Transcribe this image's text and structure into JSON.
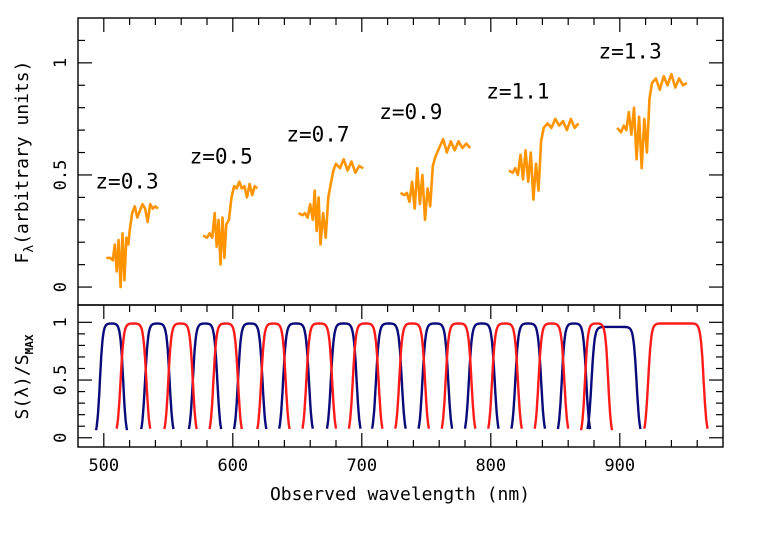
{
  "chart_data": [
    {
      "type": "line",
      "panel": "top",
      "ylabel_main": "F",
      "ylabel_sub": "λ",
      "ylabel_rest": "(arbitrary units)",
      "xlim": [
        480,
        980
      ],
      "ylim": [
        -0.08,
        1.2
      ],
      "yticks": [
        0,
        0.5,
        1
      ],
      "ytick_labels": [
        "0",
        "0.5",
        "1"
      ],
      "color": "#ff9400",
      "spectra": [
        {
          "label": "z=0.3",
          "label_pos": [
            518,
            0.44
          ],
          "x": [
            502,
            505,
            507,
            508.5,
            510,
            511.5,
            513,
            514.5,
            516,
            517.5,
            519,
            520,
            522,
            524,
            526,
            528,
            530,
            532,
            534,
            536,
            538,
            540,
            542
          ],
          "y": [
            0.13,
            0.13,
            0.12,
            0.19,
            0.07,
            0.21,
            0.0,
            0.24,
            0.03,
            0.22,
            0.19,
            0.25,
            0.33,
            0.36,
            0.31,
            0.34,
            0.37,
            0.35,
            0.29,
            0.37,
            0.35,
            0.36,
            0.35
          ]
        },
        {
          "label": "z=0.5",
          "label_pos": [
            591,
            0.55
          ],
          "x": [
            577,
            580,
            582,
            584,
            586,
            587.5,
            589,
            590.5,
            592,
            593.5,
            595,
            597,
            599,
            601,
            603,
            605,
            607,
            609,
            611,
            613,
            615,
            617,
            619
          ],
          "y": [
            0.23,
            0.22,
            0.24,
            0.22,
            0.33,
            0.18,
            0.3,
            0.1,
            0.31,
            0.13,
            0.28,
            0.3,
            0.4,
            0.45,
            0.44,
            0.47,
            0.44,
            0.45,
            0.4,
            0.46,
            0.41,
            0.45,
            0.44
          ]
        },
        {
          "label": "z=0.7",
          "label_pos": [
            666,
            0.65
          ],
          "x": [
            651,
            654,
            656,
            658,
            660,
            662,
            663.5,
            665,
            666.5,
            668,
            670,
            672,
            674,
            676,
            678,
            680,
            683,
            686,
            689,
            692,
            695,
            698,
            701
          ],
          "y": [
            0.33,
            0.32,
            0.33,
            0.31,
            0.37,
            0.3,
            0.43,
            0.25,
            0.4,
            0.19,
            0.33,
            0.22,
            0.4,
            0.46,
            0.52,
            0.55,
            0.53,
            0.57,
            0.52,
            0.56,
            0.51,
            0.54,
            0.53
          ]
        },
        {
          "label": "z=0.9",
          "label_pos": [
            738,
            0.75
          ],
          "x": [
            730,
            733,
            735,
            737,
            739,
            741,
            743,
            745,
            747,
            749,
            751,
            753,
            755,
            757,
            760,
            763,
            766,
            769,
            772,
            775,
            778,
            781,
            784
          ],
          "y": [
            0.42,
            0.41,
            0.42,
            0.38,
            0.47,
            0.35,
            0.53,
            0.37,
            0.5,
            0.3,
            0.44,
            0.36,
            0.54,
            0.58,
            0.62,
            0.66,
            0.6,
            0.65,
            0.61,
            0.65,
            0.62,
            0.64,
            0.62
          ]
        },
        {
          "label": "z=1.1",
          "label_pos": [
            821,
            0.84
          ],
          "x": [
            814,
            817,
            819,
            821,
            823,
            825,
            827,
            829,
            831,
            833,
            835,
            837,
            839,
            841,
            844,
            847,
            850,
            853,
            856,
            859,
            862,
            865,
            868
          ],
          "y": [
            0.52,
            0.51,
            0.53,
            0.5,
            0.59,
            0.48,
            0.61,
            0.47,
            0.6,
            0.39,
            0.55,
            0.43,
            0.65,
            0.71,
            0.73,
            0.71,
            0.75,
            0.72,
            0.74,
            0.7,
            0.75,
            0.71,
            0.73
          ]
        },
        {
          "label": "z=1.3",
          "label_pos": [
            908,
            1.02
          ],
          "x": [
            898,
            901,
            903,
            905,
            907,
            909,
            911,
            913,
            915,
            917,
            919,
            921,
            923,
            925,
            928,
            931,
            934,
            937,
            940,
            943,
            946,
            949,
            952
          ],
          "y": [
            0.71,
            0.69,
            0.72,
            0.7,
            0.78,
            0.68,
            0.8,
            0.57,
            0.76,
            0.53,
            0.75,
            0.6,
            0.84,
            0.91,
            0.93,
            0.88,
            0.94,
            0.9,
            0.95,
            0.89,
            0.93,
            0.9,
            0.91
          ]
        }
      ]
    },
    {
      "type": "line",
      "panel": "bottom",
      "xlabel": "Observed wavelength (nm)",
      "ylabel_main": "S(λ)/S",
      "ylabel_sub": "MAX",
      "xlim": [
        480,
        980
      ],
      "ylim": [
        -0.08,
        1.15
      ],
      "xticks": [
        500,
        600,
        700,
        800,
        900
      ],
      "xtick_labels": [
        "500",
        "600",
        "700",
        "800",
        "900"
      ],
      "yticks": [
        0,
        0.5,
        1
      ],
      "ytick_labels": [
        "0",
        "0.5",
        "1"
      ],
      "series": [
        {
          "color": "#0a0a7a",
          "filters": [
            {
              "start": 497,
              "end": 515,
              "peak": 0.99
            },
            {
              "start": 532,
              "end": 551,
              "peak": 0.99
            },
            {
              "start": 569,
              "end": 588,
              "peak": 0.99
            },
            {
              "start": 604,
              "end": 623,
              "peak": 0.99
            },
            {
              "start": 639,
              "end": 659,
              "peak": 0.99
            },
            {
              "start": 676,
              "end": 696,
              "peak": 0.99
            },
            {
              "start": 711,
              "end": 731,
              "peak": 0.99
            },
            {
              "start": 747,
              "end": 767,
              "peak": 0.99
            },
            {
              "start": 783,
              "end": 803,
              "peak": 0.99
            },
            {
              "start": 819,
              "end": 839,
              "peak": 0.99
            },
            {
              "start": 855,
              "end": 874,
              "peak": 0.99
            },
            {
              "start": 878,
              "end": 913,
              "peak": 0.96
            }
          ]
        },
        {
          "color": "#ff1a1a",
          "filters": [
            {
              "start": 513,
              "end": 533,
              "peak": 0.99
            },
            {
              "start": 550,
              "end": 569,
              "peak": 0.99
            },
            {
              "start": 585,
              "end": 604,
              "peak": 0.99
            },
            {
              "start": 622,
              "end": 641,
              "peak": 0.99
            },
            {
              "start": 657,
              "end": 677,
              "peak": 0.99
            },
            {
              "start": 693,
              "end": 713,
              "peak": 0.99
            },
            {
              "start": 729,
              "end": 749,
              "peak": 0.99
            },
            {
              "start": 765,
              "end": 785,
              "peak": 0.99
            },
            {
              "start": 801,
              "end": 821,
              "peak": 0.99
            },
            {
              "start": 837,
              "end": 857,
              "peak": 0.99
            },
            {
              "start": 873,
              "end": 891,
              "peak": 0.99
            },
            {
              "start": 922,
              "end": 965,
              "peak": 0.99
            }
          ]
        }
      ]
    }
  ]
}
